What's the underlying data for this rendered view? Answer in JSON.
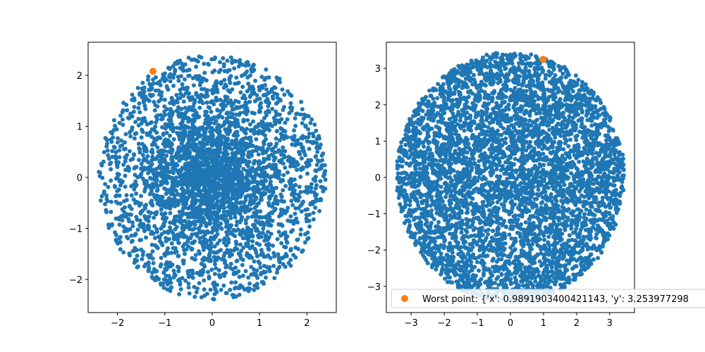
{
  "colors": {
    "scatter": "#1f77b4",
    "worst": "#ff7f0e",
    "axis": "#000000",
    "legend_border": "#cccccc"
  },
  "chart_data": [
    {
      "type": "scatter",
      "title": "",
      "xlabel": "",
      "ylabel": "",
      "xlim": [
        -2.62,
        2.62
      ],
      "ylim": [
        -2.65,
        2.65
      ],
      "xticks": [
        -2,
        -1,
        0,
        1,
        2
      ],
      "yticks": [
        -2,
        -1,
        0,
        1,
        2
      ],
      "xtick_labels": [
        "−2",
        "−1",
        "0",
        "1",
        "2"
      ],
      "ytick_labels": [
        "−2",
        "−1",
        "0",
        "1",
        "2"
      ],
      "grid": false,
      "distribution": {
        "shape": "disk",
        "radius": 2.4,
        "dense_core_radius": 1.3,
        "approx_points": 3500
      },
      "series": [
        {
          "values": [],
          "role": "scatter-cloud"
        },
        {
          "values": [
            {
              "x": -1.25,
              "y": 2.08
            }
          ],
          "role": "worst-point"
        }
      ]
    },
    {
      "type": "scatter",
      "title": "",
      "xlabel": "",
      "ylabel": "",
      "xlim": [
        -3.75,
        3.75
      ],
      "ylim": [
        -3.72,
        3.72
      ],
      "xticks": [
        -3,
        -2,
        -1,
        0,
        1,
        2,
        3
      ],
      "yticks": [
        -3,
        -2,
        -1,
        0,
        1,
        2,
        3
      ],
      "xtick_labels": [
        "−3",
        "−2",
        "−1",
        "0",
        "1",
        "2",
        "3"
      ],
      "ytick_labels": [
        "−3",
        "−2",
        "−1",
        "0",
        "1",
        "2",
        "3"
      ],
      "grid": false,
      "distribution": {
        "shape": "disk",
        "radius": 3.45,
        "approx_points": 5000
      },
      "series": [
        {
          "values": [],
          "role": "scatter-cloud"
        },
        {
          "name": "Worst point: {'x': 0.9891903400421143, 'y': 3.253977298",
          "values": [
            {
              "x": 0.99,
              "y": 3.25
            }
          ],
          "role": "worst-point"
        }
      ],
      "legend": {
        "placement": "lower-left",
        "label": "Worst point: {'x': 0.9891903400421143, 'y': 3.253977298"
      }
    }
  ]
}
